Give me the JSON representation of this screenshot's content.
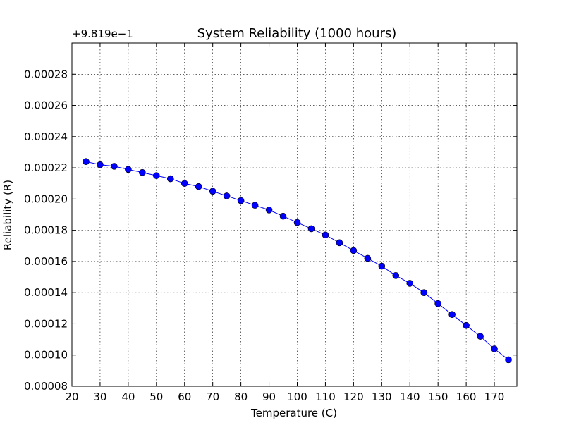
{
  "chart_data": {
    "type": "line",
    "title": "System Reliability (1000 hours)",
    "xlabel": "Temperature (C)",
    "ylabel": "Reliability (R)",
    "y_offset_label": "+9.819e−1",
    "xlim": [
      20,
      178
    ],
    "ylim": [
      8e-05,
      0.0003
    ],
    "x_ticks": [
      20,
      30,
      40,
      50,
      60,
      70,
      80,
      90,
      100,
      110,
      120,
      130,
      140,
      150,
      160,
      170
    ],
    "x_tick_labels": [
      "20",
      "30",
      "40",
      "50",
      "60",
      "70",
      "80",
      "90",
      "100",
      "110",
      "120",
      "130",
      "140",
      "150",
      "160",
      "170"
    ],
    "y_ticks": [
      8e-05,
      0.0001,
      0.00012,
      0.00014,
      0.00016,
      0.00018,
      0.0002,
      0.00022,
      0.00024,
      0.00026,
      0.00028
    ],
    "y_tick_labels": [
      "0.00008",
      "0.00010",
      "0.00012",
      "0.00014",
      "0.00016",
      "0.00018",
      "0.00020",
      "0.00022",
      "0.00024",
      "0.00026",
      "0.00028"
    ],
    "grid": true,
    "series": [
      {
        "color": "#0000ff",
        "marker": "circle",
        "x": [
          25,
          30,
          35,
          40,
          45,
          50,
          55,
          60,
          65,
          70,
          75,
          80,
          85,
          90,
          95,
          100,
          105,
          110,
          115,
          120,
          125,
          130,
          135,
          140,
          145,
          150,
          155,
          160,
          165,
          170,
          175
        ],
        "y": [
          0.000224,
          0.000222,
          0.000221,
          0.000219,
          0.000217,
          0.000215,
          0.000213,
          0.00021,
          0.000208,
          0.000205,
          0.000202,
          0.000199,
          0.000196,
          0.000193,
          0.000189,
          0.000185,
          0.000181,
          0.000177,
          0.000172,
          0.000167,
          0.000162,
          0.000157,
          0.000151,
          0.000146,
          0.00014,
          0.000133,
          0.000126,
          0.000119,
          0.000112,
          0.000104,
          9.7e-05
        ]
      }
    ]
  }
}
